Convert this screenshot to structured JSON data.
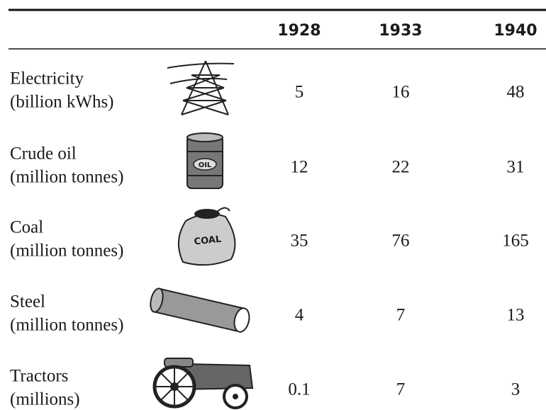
{
  "table": {
    "columns": [
      "1928",
      "1933",
      "1940"
    ],
    "rows": [
      {
        "label": [
          "Electricity",
          "(billion kWhs)"
        ],
        "values": [
          5,
          16,
          48
        ]
      },
      {
        "label": [
          "Crude oil",
          "(million tonnes)"
        ],
        "icon_text": "OIL",
        "values": [
          12,
          22,
          31
        ]
      },
      {
        "label": [
          "Coal",
          "(million tonnes)"
        ],
        "icon_text": "COAL",
        "values": [
          35,
          76,
          165
        ]
      },
      {
        "label": [
          "Steel",
          "(million tonnes)"
        ],
        "values": [
          4,
          7,
          13
        ]
      },
      {
        "label": [
          "Tractors",
          "(millions)"
        ],
        "values": [
          0.1,
          7,
          3
        ]
      }
    ]
  }
}
